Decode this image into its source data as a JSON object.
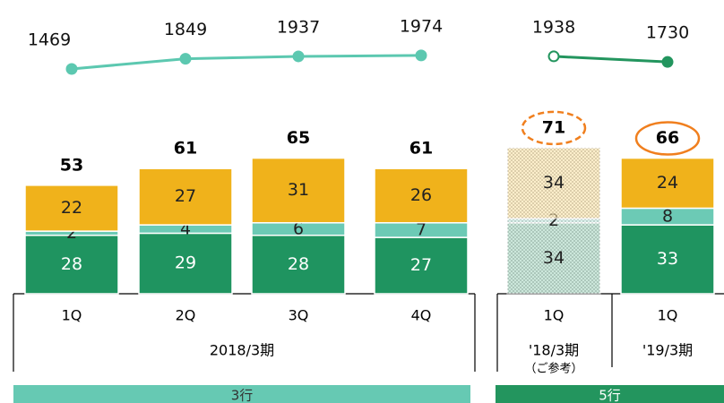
{
  "chart_data": {
    "type": "bar",
    "stacked": true,
    "categories": [
      "1Q",
      "2Q",
      "3Q",
      "4Q",
      "1Q",
      "1Q"
    ],
    "series": [
      {
        "color": "#1f9460",
        "values": [
          28,
          29,
          28,
          27,
          34,
          33
        ]
      },
      {
        "color": "#6ccab5",
        "values": [
          2,
          4,
          6,
          7,
          2,
          8
        ]
      },
      {
        "color": "#f0b21b",
        "values": [
          22,
          27,
          31,
          26,
          34,
          24
        ]
      }
    ],
    "totals": [
      53,
      61,
      65,
      61,
      71,
      66
    ],
    "line_series": [
      {
        "color": "#5cc8b0",
        "values": [
          1469,
          1849,
          1937,
          1974
        ]
      },
      {
        "color": "#23955e",
        "values": [
          1938,
          1730
        ]
      }
    ],
    "period_labels": [
      "2018/3期",
      "'18/3期",
      "'19/3期"
    ],
    "note": "（ご参考）",
    "bands": [
      {
        "label": "3行",
        "color": "#66c9b3"
      },
      {
        "label": "5行",
        "color": "#23955e"
      }
    ]
  }
}
